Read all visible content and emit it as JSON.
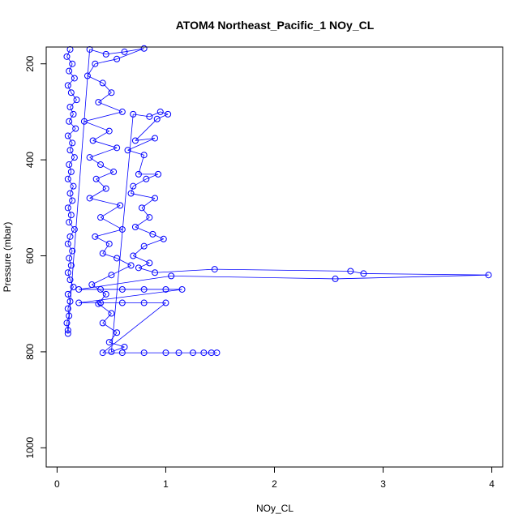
{
  "chart_data": {
    "type": "scatter",
    "title": "ATOM4 Northeast_Pacific_1 NOy_CL",
    "xlabel": "NOy_CL",
    "ylabel": "Pressure (mbar)",
    "xlim": [
      -0.1,
      4.1
    ],
    "ylim": [
      1040,
      165
    ],
    "y_axis_inverted": true,
    "x_ticks": [
      0,
      1,
      2,
      3,
      4
    ],
    "y_ticks": [
      200,
      400,
      600,
      800,
      1000
    ],
    "marker": "open-circle",
    "connected_with_lines": true,
    "series_color": "#0000ff",
    "grid": false,
    "legend": "none",
    "series": [
      {
        "points": [
          [
            0.12,
            170
          ],
          [
            0.09,
            185
          ],
          [
            0.14,
            200
          ],
          [
            0.11,
            215
          ],
          [
            0.16,
            230
          ],
          [
            0.1,
            245
          ],
          [
            0.13,
            260
          ],
          [
            0.18,
            275
          ],
          [
            0.12,
            290
          ],
          [
            0.15,
            305
          ],
          [
            0.11,
            320
          ],
          [
            0.17,
            335
          ],
          [
            0.1,
            350
          ],
          [
            0.14,
            365
          ],
          [
            0.12,
            380
          ],
          [
            0.16,
            395
          ],
          [
            0.11,
            410
          ],
          [
            0.13,
            425
          ],
          [
            0.1,
            440
          ],
          [
            0.15,
            455
          ],
          [
            0.12,
            470
          ],
          [
            0.14,
            485
          ],
          [
            0.1,
            500
          ],
          [
            0.13,
            515
          ],
          [
            0.11,
            530
          ],
          [
            0.16,
            545
          ],
          [
            0.12,
            560
          ],
          [
            0.1,
            575
          ],
          [
            0.14,
            590
          ],
          [
            0.11,
            605
          ],
          [
            0.13,
            620
          ],
          [
            0.1,
            635
          ],
          [
            0.12,
            650
          ],
          [
            0.15,
            665
          ],
          [
            0.1,
            680
          ],
          [
            0.12,
            695
          ],
          [
            0.1,
            710
          ],
          [
            0.11,
            725
          ],
          [
            0.09,
            740
          ],
          [
            0.1,
            755
          ],
          [
            0.1,
            762
          ],
          [
            0.3,
            170
          ],
          [
            0.45,
            180
          ],
          [
            0.62,
            175
          ],
          [
            0.8,
            168
          ],
          [
            0.55,
            190
          ],
          [
            0.35,
            200
          ],
          [
            0.28,
            225
          ],
          [
            0.42,
            240
          ],
          [
            0.5,
            260
          ],
          [
            0.38,
            280
          ],
          [
            0.6,
            300
          ],
          [
            0.25,
            320
          ],
          [
            0.48,
            340
          ],
          [
            0.33,
            360
          ],
          [
            0.55,
            375
          ],
          [
            0.3,
            395
          ],
          [
            0.4,
            410
          ],
          [
            0.52,
            425
          ],
          [
            0.36,
            440
          ],
          [
            0.45,
            460
          ],
          [
            0.3,
            480
          ],
          [
            0.58,
            495
          ],
          [
            0.4,
            520
          ],
          [
            0.6,
            545
          ],
          [
            0.35,
            560
          ],
          [
            0.48,
            575
          ],
          [
            0.42,
            595
          ],
          [
            0.55,
            605
          ],
          [
            0.68,
            620
          ],
          [
            0.5,
            640
          ],
          [
            0.32,
            660
          ],
          [
            0.45,
            680
          ],
          [
            0.38,
            700
          ],
          [
            0.5,
            720
          ],
          [
            0.42,
            740
          ],
          [
            0.55,
            760
          ],
          [
            0.48,
            780
          ],
          [
            0.62,
            790
          ],
          [
            0.5,
            800
          ],
          [
            0.7,
            305
          ],
          [
            0.85,
            310
          ],
          [
            0.95,
            300
          ],
          [
            1.02,
            305
          ],
          [
            0.92,
            315
          ],
          [
            0.72,
            360
          ],
          [
            0.9,
            355
          ],
          [
            0.65,
            380
          ],
          [
            0.8,
            390
          ],
          [
            0.75,
            430
          ],
          [
            0.93,
            430
          ],
          [
            0.82,
            440
          ],
          [
            0.7,
            455
          ],
          [
            0.68,
            470
          ],
          [
            0.9,
            480
          ],
          [
            0.78,
            500
          ],
          [
            0.85,
            520
          ],
          [
            0.72,
            540
          ],
          [
            0.88,
            555
          ],
          [
            0.98,
            565
          ],
          [
            0.8,
            580
          ],
          [
            0.7,
            600
          ],
          [
            0.85,
            615
          ],
          [
            0.75,
            625
          ],
          [
            0.9,
            635
          ],
          [
            1.45,
            628
          ],
          [
            2.7,
            632
          ],
          [
            2.82,
            637
          ],
          [
            3.97,
            640
          ],
          [
            2.56,
            648
          ],
          [
            1.05,
            642
          ],
          [
            0.2,
            670
          ],
          [
            0.4,
            670
          ],
          [
            0.6,
            670
          ],
          [
            0.8,
            670
          ],
          [
            1.0,
            670
          ],
          [
            1.15,
            670
          ],
          [
            0.2,
            698
          ],
          [
            0.4,
            698
          ],
          [
            0.6,
            698
          ],
          [
            0.8,
            698
          ],
          [
            1.0,
            698
          ],
          [
            0.42,
            802
          ],
          [
            0.6,
            802
          ],
          [
            0.8,
            802
          ],
          [
            1.0,
            802
          ],
          [
            1.12,
            802
          ],
          [
            1.25,
            802
          ],
          [
            1.35,
            802
          ],
          [
            1.42,
            802
          ],
          [
            1.47,
            802
          ]
        ]
      }
    ]
  }
}
